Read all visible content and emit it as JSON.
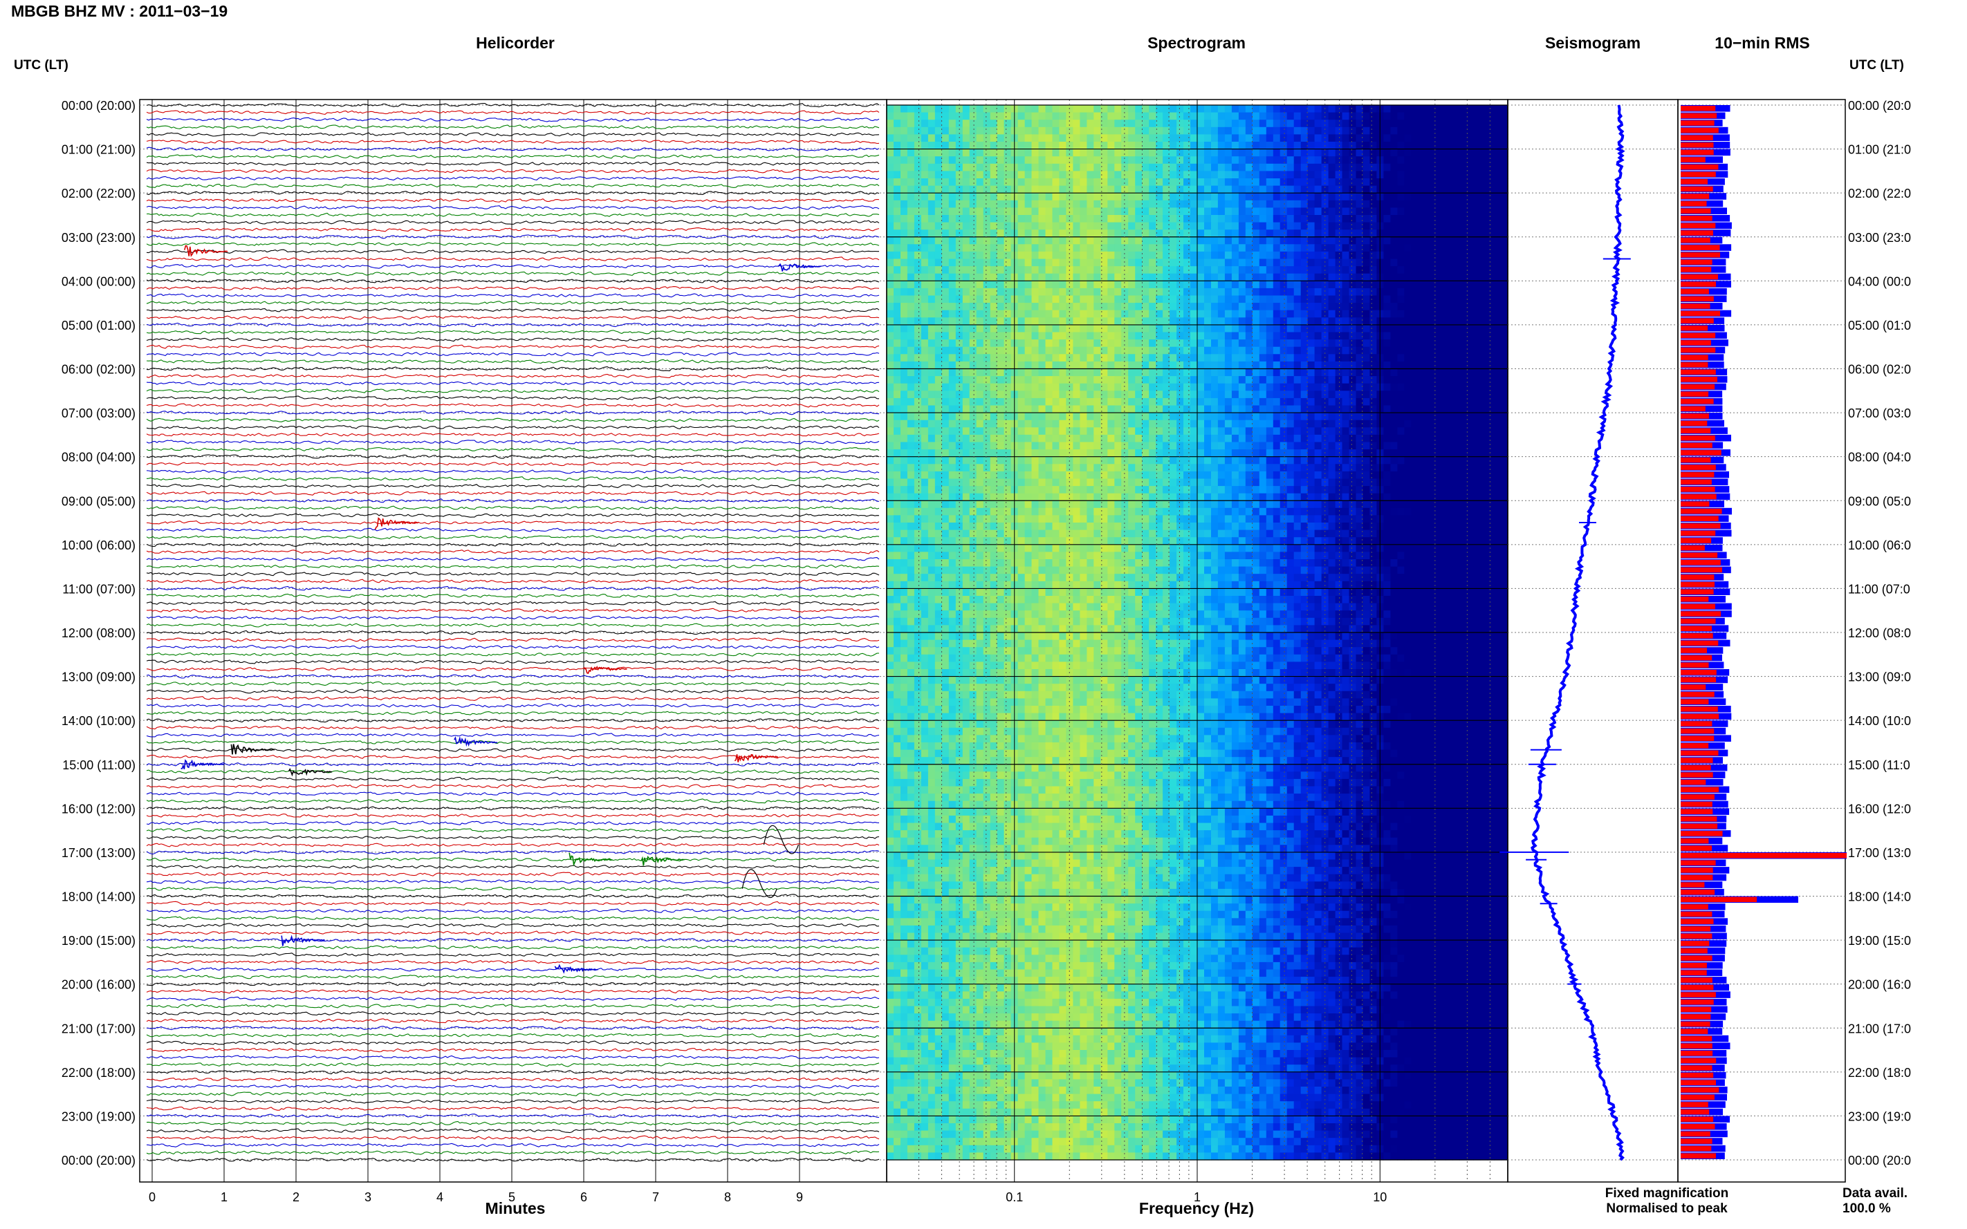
{
  "page": {
    "title": "MBGB BHZ MV : 2011−03−19"
  },
  "axes": {
    "left_header": "UTC (LT)",
    "right_header": "UTC (LT)",
    "hour_labels": [
      "00:00 (20:00)",
      "01:00 (21:00)",
      "02:00 (22:00)",
      "03:00 (23:00)",
      "04:00 (00:00)",
      "05:00 (01:00)",
      "06:00 (02:00)",
      "07:00 (03:00)",
      "08:00 (04:00)",
      "09:00 (05:00)",
      "10:00 (06:00)",
      "11:00 (07:00)",
      "12:00 (08:00)",
      "13:00 (09:00)",
      "14:00 (10:00)",
      "15:00 (11:00)",
      "16:00 (12:00)",
      "17:00 (13:00)",
      "18:00 (14:00)",
      "19:00 (15:00)",
      "20:00 (16:00)",
      "21:00 (17:00)",
      "22:00 (18:00)",
      "23:00 (19:00)",
      "00:00 (20:00)"
    ],
    "right_hour_labels": [
      "00:00 (20:0",
      "01:00 (21:0",
      "02:00 (22:0",
      "03:00 (23:0",
      "04:00 (00:0",
      "05:00 (01:0",
      "06:00 (02:0",
      "07:00 (03:0",
      "08:00 (04:0",
      "09:00 (05:0",
      "10:00 (06:0",
      "11:00 (07:0",
      "12:00 (08:0",
      "13:00 (09:0",
      "14:00 (10:0",
      "15:00 (11:0",
      "16:00 (12:0",
      "17:00 (13:0",
      "18:00 (14:0",
      "19:00 (15:0",
      "20:00 (16:0",
      "21:00 (17:0",
      "22:00 (18:0",
      "23:00 (19:0",
      "00:00 (20:0"
    ]
  },
  "legend": {
    "fixed": "Fixed magnification",
    "normalised": "Normalised to peak",
    "avail_label": "Data avail.",
    "avail_value": "100.0 %",
    "fixed_color": "#0000ff",
    "normalised_color": "#ff0000"
  },
  "chart_data": [
    {
      "type": "line",
      "title": "Helicorder",
      "xlabel": "Minutes",
      "x_ticks": [
        "0",
        "1",
        "2",
        "3",
        "4",
        "5",
        "6",
        "7",
        "8",
        "9"
      ],
      "xlim": [
        0,
        10
      ],
      "trace_colors": [
        "#000000",
        "#d40000",
        "#0000d4",
        "#008000"
      ],
      "traces_per_hour": 6,
      "events": [
        {
          "hour": 3.33,
          "minute": 0.45,
          "color": "#d40000"
        },
        {
          "hour": 3.67,
          "minute": 8.7,
          "color": "#0000d4"
        },
        {
          "hour": 9.5,
          "minute": 3.1,
          "color": "#d40000"
        },
        {
          "hour": 14.5,
          "minute": 4.2,
          "color": "#0000d4"
        },
        {
          "hour": 14.67,
          "minute": 1.1,
          "color": "#000000"
        },
        {
          "hour": 15.0,
          "minute": 0.4,
          "color": "#0000d4"
        },
        {
          "hour": 15.17,
          "minute": 1.9,
          "color": "#000000"
        },
        {
          "hour": 14.83,
          "minute": 8.1,
          "color": "#d40000"
        },
        {
          "hour": 17.17,
          "minute": 5.8,
          "color": "#008000"
        },
        {
          "hour": 17.17,
          "minute": 6.8,
          "color": "#008000"
        },
        {
          "hour": 19.0,
          "minute": 1.8,
          "color": "#0000d4"
        },
        {
          "hour": 19.67,
          "minute": 5.6,
          "color": "#0000d4"
        },
        {
          "hour": 12.83,
          "minute": 6.0,
          "color": "#d40000"
        }
      ]
    },
    {
      "type": "heatmap",
      "title": "Spectrogram",
      "xlabel": "Frequency (Hz)",
      "x_scale": "log",
      "xlim": [
        0.02,
        50
      ],
      "x_ticks": [
        "0.1",
        "1",
        "10"
      ]
    },
    {
      "type": "line",
      "title": "Seismogram",
      "color": "#0000ff"
    },
    {
      "type": "bar",
      "title": "10−min RMS",
      "series": [
        {
          "name": "Fixed magnification",
          "color": "#0000ff"
        },
        {
          "name": "Normalised to peak",
          "color": "#ff0000"
        }
      ],
      "bars_per_hour": 6,
      "spikes": [
        {
          "hour": 17.0,
          "value": 1.0
        },
        {
          "hour": 18.0,
          "value": 0.7
        }
      ]
    }
  ]
}
